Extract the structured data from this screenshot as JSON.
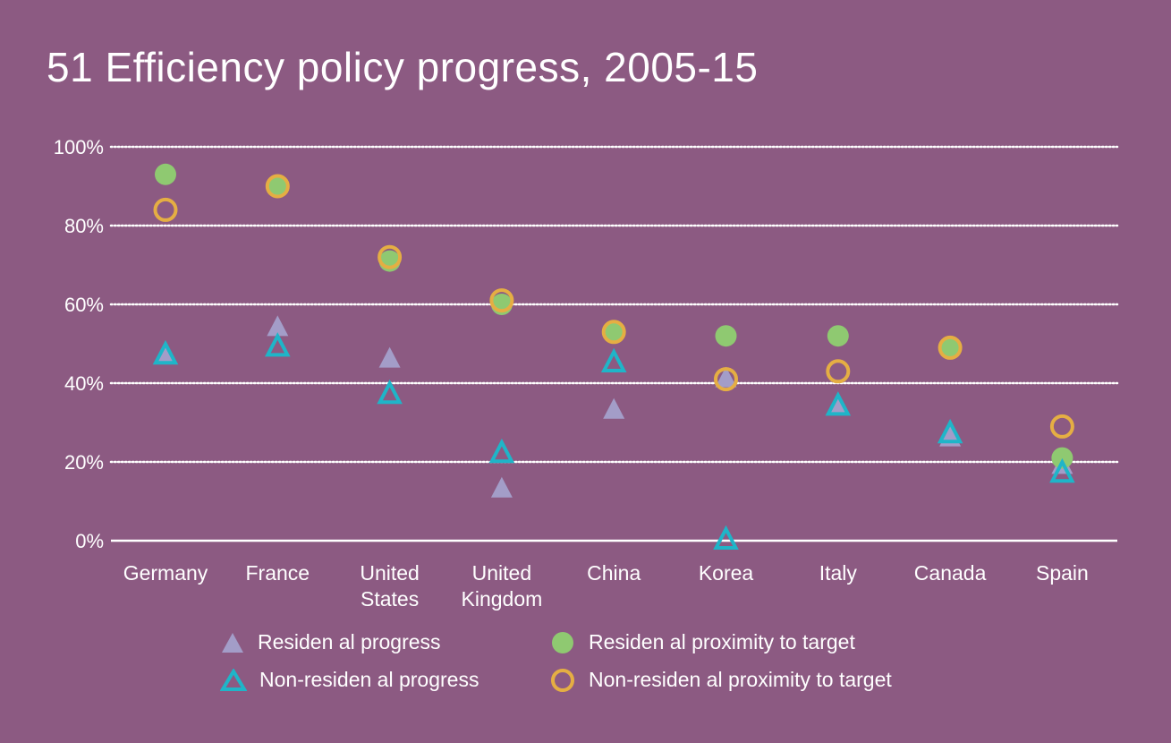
{
  "chart_data": {
    "type": "scatter",
    "title": "51 Efficiency policy progress, 2005-15",
    "categories": [
      [
        "Germany"
      ],
      [
        "France"
      ],
      [
        "United",
        "States"
      ],
      [
        "United",
        "Kingdom"
      ],
      [
        "China"
      ],
      [
        "Korea"
      ],
      [
        "Italy"
      ],
      [
        "Canada"
      ],
      [
        "Spain"
      ]
    ],
    "y_ticks": [
      "0%",
      "20%",
      "40%",
      "60%",
      "80%",
      "100%"
    ],
    "ylim": [
      0,
      100
    ],
    "grid": true,
    "legend_position": "bottom",
    "series": [
      {
        "name": "Residen al progress",
        "marker": "triangle-filled",
        "color": "#a39dc8",
        "values": [
          47,
          54,
          46,
          13,
          33,
          41,
          34,
          26,
          19
        ]
      },
      {
        "name": "Residen al proximity to target",
        "marker": "circle-filled",
        "color": "#8fc971",
        "values": [
          93,
          90,
          71,
          60,
          53,
          52,
          52,
          49,
          21
        ]
      },
      {
        "name": "Non-residen al progress",
        "marker": "triangle-open",
        "color": "#1fb5c8",
        "values": [
          47,
          49,
          37,
          22,
          45,
          0,
          34,
          27,
          17
        ]
      },
      {
        "name": "Non-residen al proximity to target",
        "marker": "circle-open",
        "color": "#e5ae43",
        "values": [
          84,
          90,
          72,
          61,
          53,
          41,
          43,
          49,
          29
        ]
      }
    ]
  },
  "colors": {
    "background": "#8c5a82",
    "gridline": "#ffffff"
  }
}
